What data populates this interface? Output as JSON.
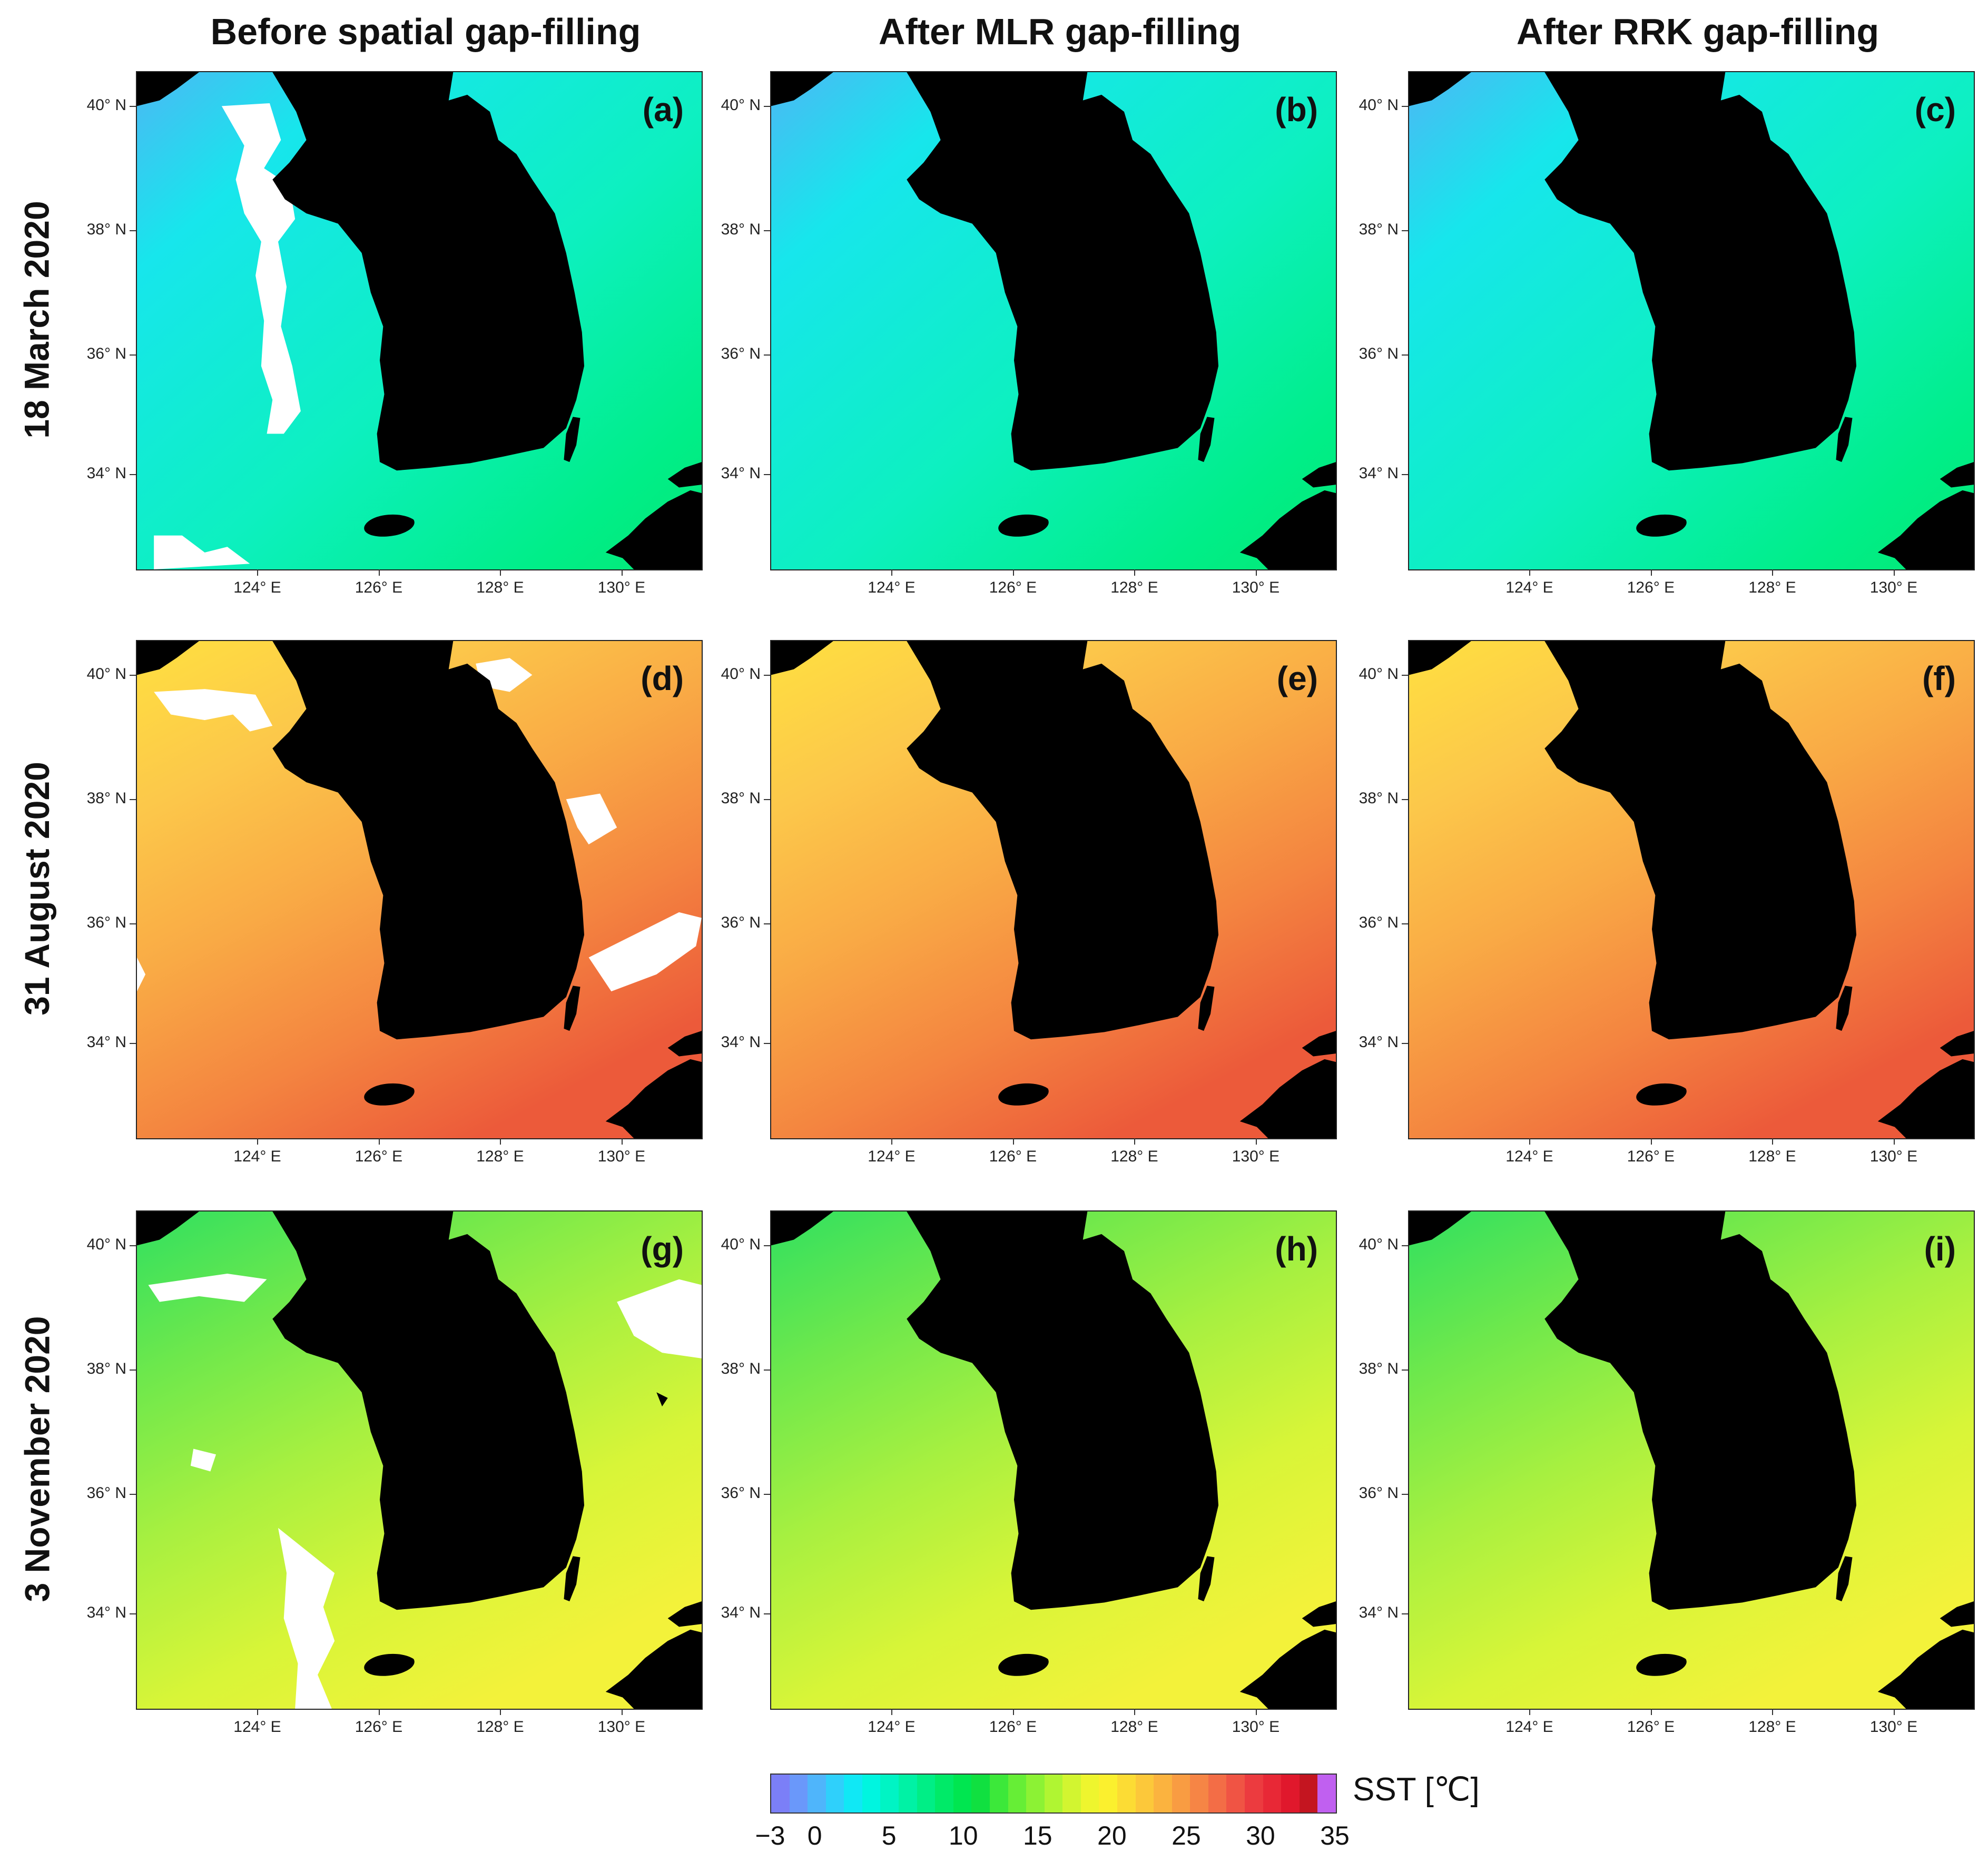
{
  "columns": [
    {
      "title": "Before spatial gap-filling"
    },
    {
      "title": "After MLR gap-filling"
    },
    {
      "title": "After RRK gap-filling"
    }
  ],
  "rows": [
    {
      "title": "18 March 2020"
    },
    {
      "title": "31 August 2020"
    },
    {
      "title": "3 November 2020"
    }
  ],
  "panels": [
    {
      "label": "(a)",
      "season": "spring",
      "gaps": true
    },
    {
      "label": "(b)",
      "season": "spring",
      "gaps": false
    },
    {
      "label": "(c)",
      "season": "spring",
      "gaps": false
    },
    {
      "label": "(d)",
      "season": "summer",
      "gaps": true
    },
    {
      "label": "(e)",
      "season": "summer",
      "gaps": false
    },
    {
      "label": "(f)",
      "season": "summer",
      "gaps": false
    },
    {
      "label": "(g)",
      "season": "autumn",
      "gaps": true
    },
    {
      "label": "(h)",
      "season": "autumn",
      "gaps": false
    },
    {
      "label": "(i)",
      "season": "autumn",
      "gaps": false
    }
  ],
  "axes": {
    "lat_ticks": [
      "40° N",
      "38° N",
      "36° N",
      "34° N"
    ],
    "lon_ticks": [
      "124° E",
      "126° E",
      "128° E",
      "130° E"
    ]
  },
  "colorbar": {
    "label": "SST [℃]",
    "ticks": [
      "−3",
      "0",
      "5",
      "10",
      "15",
      "20",
      "25",
      "30",
      "35"
    ],
    "colors": [
      "#7b7ff7",
      "#6a98fa",
      "#4fb5fb",
      "#2fd0fb",
      "#10e8f5",
      "#00f5e0",
      "#00f4c4",
      "#00f2a5",
      "#00ee86",
      "#00ea68",
      "#00e650",
      "#10e040",
      "#3ce83a",
      "#66ee36",
      "#8cf234",
      "#b0f532",
      "#d2f530",
      "#eef52e",
      "#fbf02e",
      "#fcdc34",
      "#fcc83a",
      "#fbb33f",
      "#f99c42",
      "#f68545",
      "#f36d46",
      "#f05444",
      "#ec3b3f",
      "#e82836",
      "#e0182c",
      "#c41520",
      "#c060f0"
    ]
  },
  "colors": {
    "land": "#000000",
    "missing": "#ffffff",
    "spring_ocean": [
      "#17e6ec",
      "#0df0c0",
      "#00ee88",
      "#05e874",
      "#4cb8f4"
    ],
    "summer_ocean": [
      "#ffe040",
      "#fcc84a",
      "#f9aa45",
      "#f48540",
      "#ec5a3a"
    ],
    "autumn_ocean": [
      "#30e060",
      "#6ee84c",
      "#a8f040",
      "#d8f538",
      "#f3f23a"
    ]
  }
}
